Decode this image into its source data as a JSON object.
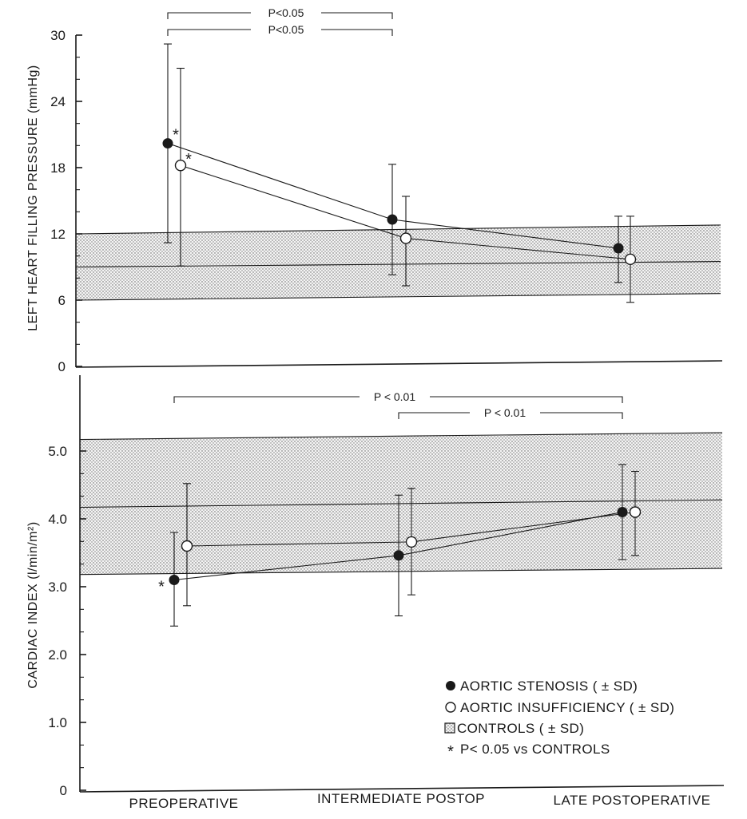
{
  "categories": [
    "PREOPERATIVE",
    "INTERMEDIATE POSTOP",
    "LATE POSTOPERATIVE"
  ],
  "chart_data": [
    {
      "type": "line",
      "id": "filling_pressure",
      "title": "",
      "ylabel": "LEFT HEART FILLING PRESSURE (mmHg)",
      "ylim": [
        0,
        30
      ],
      "yticks": [
        "0",
        "6",
        "12",
        "18",
        "24",
        "30"
      ],
      "ytick_values": [
        0,
        6,
        12,
        18,
        24,
        30
      ],
      "categories": [
        "PREOPERATIVE",
        "INTERMEDIATE POSTOP",
        "LATE POSTOPERATIVE"
      ],
      "controls": {
        "name": "CONTROLS ( ± SD)",
        "mean": [
          9.0,
          9.5
        ],
        "low": [
          6.0,
          6.6
        ],
        "high": [
          12.0,
          12.8
        ]
      },
      "series": [
        {
          "name": "AORTIC STENOSIS ( ± SD)",
          "marker": "filled",
          "values": [
            20.2,
            13.3,
            10.7
          ],
          "sd_low": [
            11.2,
            8.3,
            7.6
          ],
          "sd_high": [
            29.2,
            18.3,
            13.6
          ],
          "asterisk": [
            true,
            false,
            false
          ]
        },
        {
          "name": "AORTIC INSUFFICIENCY ( ± SD)",
          "marker": "open",
          "values": [
            18.2,
            11.6,
            9.7
          ],
          "sd_low": [
            9.1,
            7.3,
            5.8
          ],
          "sd_high": [
            27.0,
            15.4,
            13.6
          ],
          "asterisk": [
            true,
            false,
            false
          ]
        }
      ],
      "comparisons": [
        {
          "label": "P<0.05",
          "from": 0,
          "to": 1,
          "level": 1
        },
        {
          "label": "P<0.05",
          "from": 0,
          "to": 1,
          "level": 2
        }
      ]
    },
    {
      "type": "line",
      "id": "cardiac_index",
      "title": "",
      "ylabel": "CARDIAC INDEX (l/min/m²)",
      "ylim": [
        0,
        5.0
      ],
      "yticks": [
        "0",
        "1.0",
        "2.0",
        "3.0",
        "4.0",
        "5.0"
      ],
      "ytick_values": [
        0,
        1.0,
        2.0,
        3.0,
        4.0,
        5.0
      ],
      "categories": [
        "PREOPERATIVE",
        "INTERMEDIATE POSTOP",
        "LATE POSTOPERATIVE"
      ],
      "controls": {
        "name": "CONTROLS ( ± SD)",
        "mean": [
          4.17,
          4.28
        ],
        "low": [
          3.18,
          3.27
        ],
        "high": [
          5.17,
          5.27
        ]
      },
      "series": [
        {
          "name": "AORTIC STENOSIS ( ± SD)",
          "marker": "filled",
          "values": [
            3.1,
            3.46,
            4.1
          ],
          "sd_low": [
            2.42,
            2.57,
            3.4
          ],
          "sd_high": [
            3.8,
            4.35,
            4.8
          ],
          "asterisk": [
            true,
            false,
            false
          ]
        },
        {
          "name": "AORTIC INSUFFICIENCY ( ± SD)",
          "marker": "open",
          "values": [
            3.6,
            3.66,
            4.1
          ],
          "sd_low": [
            2.72,
            2.88,
            3.46
          ],
          "sd_high": [
            4.52,
            4.45,
            4.7
          ],
          "asterisk": [
            false,
            false,
            false
          ]
        }
      ],
      "comparisons": [
        {
          "label": "P < 0.01",
          "from": 0,
          "to": 2,
          "level": 1
        },
        {
          "label": "P < 0.01",
          "from": 1,
          "to": 2,
          "level": 2
        }
      ]
    }
  ],
  "legend": {
    "placement": "bottom-right",
    "items": [
      {
        "symbol": "filled-circle",
        "label": "AORTIC STENOSIS ( ± SD)"
      },
      {
        "symbol": "open-circle",
        "label": "AORTIC INSUFFICIENCY ( ± SD)"
      },
      {
        "symbol": "dotted-square",
        "label": "CONTROLS ( ± SD)"
      },
      {
        "symbol": "asterisk",
        "label": "P< 0.05 vs CONTROLS"
      }
    ]
  }
}
